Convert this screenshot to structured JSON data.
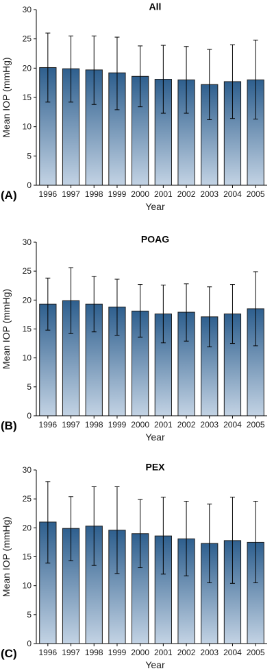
{
  "figure": {
    "colors": {
      "bar_top": "#2e5f8e",
      "bar_bottom": "#c3d3e4",
      "bar_stroke": "#1c1c1c",
      "axis": "#000000"
    }
  },
  "chart_data": [
    {
      "type": "bar",
      "panel_label": "(A)",
      "title": "All",
      "xlabel": "Year",
      "ylabel": "Mean IOP (mmHg)",
      "ylim": [
        0,
        30
      ],
      "yticks": [
        0,
        5,
        10,
        15,
        20,
        25,
        30
      ],
      "categories": [
        "1996",
        "1997",
        "1998",
        "1999",
        "2000",
        "2001",
        "2002",
        "2003",
        "2004",
        "2005"
      ],
      "values": [
        20.1,
        19.9,
        19.7,
        19.2,
        18.6,
        18.1,
        18.0,
        17.2,
        17.7,
        18.0
      ],
      "error_upper": [
        26.0,
        25.5,
        25.5,
        25.3,
        23.8,
        23.9,
        23.7,
        23.2,
        24.0,
        24.8
      ],
      "error_lower": [
        14.2,
        14.2,
        13.8,
        12.9,
        13.4,
        12.3,
        12.3,
        11.2,
        11.4,
        11.3
      ],
      "grid": false
    },
    {
      "type": "bar",
      "panel_label": "(B)",
      "title": "POAG",
      "xlabel": "Year",
      "ylabel": "Mean IOP (mmHg)",
      "ylim": [
        0,
        30
      ],
      "yticks": [
        0,
        5,
        10,
        15,
        20,
        25,
        30
      ],
      "categories": [
        "1996",
        "1997",
        "1998",
        "1999",
        "2000",
        "2001",
        "2002",
        "2003",
        "2004",
        "2005"
      ],
      "values": [
        19.3,
        19.9,
        19.3,
        18.8,
        18.1,
        17.6,
        17.9,
        17.1,
        17.6,
        18.5
      ],
      "error_upper": [
        23.8,
        25.6,
        24.1,
        23.6,
        22.7,
        22.6,
        22.8,
        22.3,
        22.7,
        24.9
      ],
      "error_lower": [
        14.8,
        14.2,
        14.5,
        13.9,
        13.6,
        12.6,
        12.9,
        11.9,
        12.5,
        12.1
      ],
      "grid": false
    },
    {
      "type": "bar",
      "panel_label": "(C)",
      "title": "PEX",
      "xlabel": "Year",
      "ylabel": "Mean IOP (mmHg)",
      "ylim": [
        0,
        30
      ],
      "yticks": [
        0,
        5,
        10,
        15,
        20,
        25,
        30
      ],
      "categories": [
        "1996",
        "1997",
        "1998",
        "1999",
        "2000",
        "2001",
        "2002",
        "2003",
        "2004",
        "2005"
      ],
      "values": [
        21.0,
        19.9,
        20.3,
        19.6,
        19.0,
        18.6,
        18.1,
        17.3,
        17.8,
        17.5
      ],
      "error_upper": [
        28.0,
        25.4,
        27.1,
        27.1,
        24.9,
        25.3,
        24.6,
        24.1,
        25.3,
        24.6
      ],
      "error_lower": [
        13.9,
        14.3,
        13.5,
        12.1,
        13.1,
        12.0,
        11.7,
        10.5,
        10.4,
        10.5
      ],
      "grid": false
    }
  ]
}
